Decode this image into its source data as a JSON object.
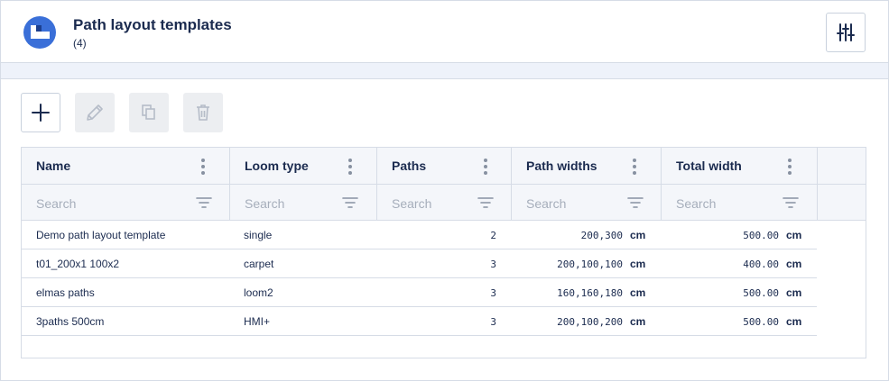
{
  "header": {
    "title": "Path layout templates",
    "count": "(4)"
  },
  "toolbar": {
    "add": "add-icon",
    "edit": "pencil-icon",
    "copy": "copy-icon",
    "delete": "trash-icon"
  },
  "table": {
    "columns": [
      {
        "label": "Name",
        "placeholder": "Search"
      },
      {
        "label": "Loom type",
        "placeholder": "Search"
      },
      {
        "label": "Paths",
        "placeholder": "Search"
      },
      {
        "label": "Path widths",
        "placeholder": "Search"
      },
      {
        "label": "Total width",
        "placeholder": "Search"
      }
    ],
    "rows": [
      {
        "name": "Demo path layout template",
        "loom_type": "single",
        "paths": "2",
        "path_widths": "200,300",
        "path_widths_unit": "cm",
        "total_width": "500.00",
        "total_width_unit": "cm"
      },
      {
        "name": "t01_200x1 100x2",
        "loom_type": "carpet",
        "paths": "3",
        "path_widths": "200,100,100",
        "path_widths_unit": "cm",
        "total_width": "400.00",
        "total_width_unit": "cm"
      },
      {
        "name": "elmas paths",
        "loom_type": "loom2",
        "paths": "3",
        "path_widths": "160,160,180",
        "path_widths_unit": "cm",
        "total_width": "500.00",
        "total_width_unit": "cm"
      },
      {
        "name": "3paths 500cm",
        "loom_type": "HMI+",
        "paths": "3",
        "path_widths": "200,100,200",
        "path_widths_unit": "cm",
        "total_width": "500.00",
        "total_width_unit": "cm"
      }
    ]
  },
  "colors": {
    "accent": "#3a6fd8",
    "text": "#1b2b4f",
    "border": "#d6dce6"
  }
}
